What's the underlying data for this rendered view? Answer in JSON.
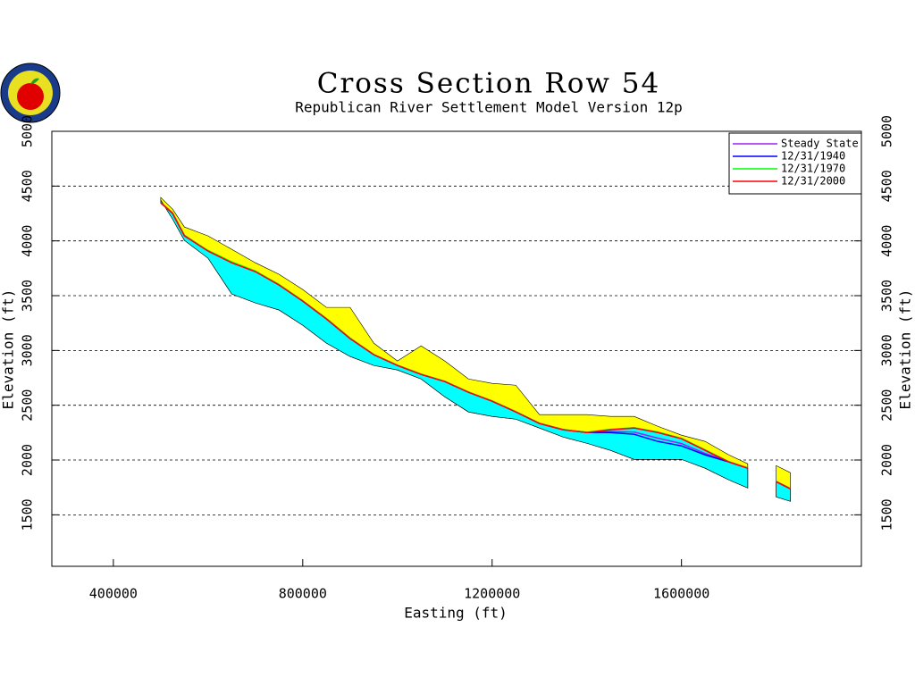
{
  "chart_data": {
    "type": "cross-section",
    "title": "Cross Section Row 54",
    "subtitle": "Republican River Settlement Model Version 12p",
    "xlabel": "Easting (ft)",
    "ylabel": "Elevation (ft)",
    "y2label": "Elevation (ft)",
    "xlim": [
      270000,
      1980000
    ],
    "ylim": [
      1030,
      5000
    ],
    "xticks": [
      400000,
      800000,
      1200000,
      1600000
    ],
    "yticks": [
      1500,
      2000,
      2500,
      3000,
      3500,
      4000,
      4500,
      5000
    ],
    "grid": true,
    "legend": "upper right",
    "x": [
      500000,
      525000,
      550000,
      600000,
      650000,
      700000,
      750000,
      800000,
      850000,
      900000,
      950000,
      1000000,
      1050000,
      1100000,
      1150000,
      1200000,
      1250000,
      1300000,
      1350000,
      1400000,
      1450000,
      1500000,
      1550000,
      1600000,
      1650000,
      1700000,
      1740000,
      null,
      1800000,
      1830000
    ],
    "land_surface": {
      "color": "#ffff00",
      "values": [
        4396,
        4290,
        4127,
        4045,
        3923,
        3800,
        3695,
        3556,
        3393,
        3393,
        3067,
        2904,
        3042,
        2904,
        2740,
        2700,
        2683,
        2414,
        2414,
        2414,
        2398,
        2398,
        2308,
        2227,
        2170,
        2047,
        1966,
        null,
        1949,
        1884
      ]
    },
    "aquifer_base": {
      "color": "#00ffff",
      "values": [
        4372,
        4200,
        4005,
        3842,
        3515,
        3434,
        3369,
        3230,
        3067,
        2945,
        2863,
        2822,
        2740,
        2577,
        2439,
        2398,
        2373,
        2292,
        2210,
        2153,
        2088,
        2006,
        2006,
        2006,
        1925,
        1819,
        1745,
        null,
        1664,
        1623
      ]
    },
    "series": [
      {
        "name": "Steady State",
        "color": "#a020f0",
        "values": [
          4350,
          4255,
          4050,
          3910,
          3805,
          3722,
          3600,
          3452,
          3290,
          3112,
          2963,
          2865,
          2783,
          2718,
          2620,
          2539,
          2441,
          2335,
          2278,
          2253,
          2260,
          2255,
          2200,
          2150,
          2060,
          1985,
          1927,
          null,
          1805,
          1740
        ]
      },
      {
        "name": "12/31/1940",
        "color": "#0000ff",
        "values": [
          4349,
          4252,
          4048,
          3909,
          3803,
          3721,
          3599,
          3451,
          3289,
          3110,
          2962,
          2864,
          2782,
          2717,
          2619,
          2538,
          2440,
          2334,
          2277,
          2252,
          2251,
          2235,
          2170,
          2129,
          2047,
          1982,
          1925,
          null,
          1803,
          1738
        ]
      },
      {
        "name": "12/31/1970",
        "color": "#00ff00",
        "values": [
          4348,
          4251,
          4047,
          3912,
          3808,
          3725,
          3602,
          3453,
          3291,
          3112,
          2963,
          2865,
          2783,
          2718,
          2620,
          2539,
          2441,
          2335,
          2278,
          2253,
          2280,
          2295,
          2255,
          2198,
          2092,
          1985,
          1927,
          null,
          1804,
          1739
        ]
      },
      {
        "name": "12/31/2000",
        "color": "#ff0000",
        "values": [
          4347,
          4249,
          4045,
          3907,
          3800,
          3719,
          3597,
          3450,
          3287,
          3108,
          2961,
          2863,
          2781,
          2716,
          2618,
          2537,
          2439,
          2333,
          2276,
          2251,
          2276,
          2292,
          2251,
          2194,
          2088,
          1982,
          1925,
          null,
          1802,
          1737
        ]
      }
    ]
  }
}
